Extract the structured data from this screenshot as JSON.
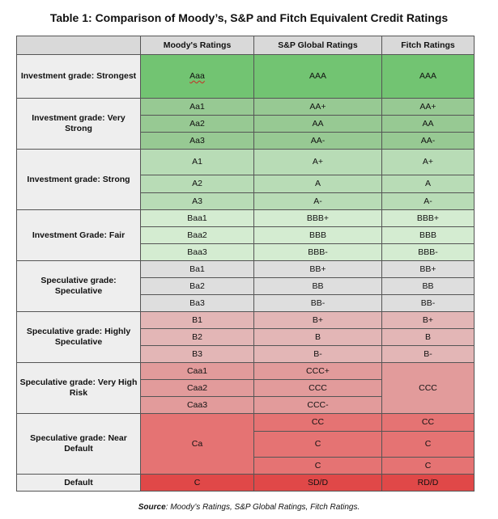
{
  "title": "Table 1: Comparison of Moody’s, S&P and Fitch Equivalent Credit Ratings",
  "headers": [
    "",
    "Moody's Ratings",
    "S&P Global Ratings",
    "Fitch Ratings"
  ],
  "categories": {
    "strongest": "Investment grade: Strongest",
    "very_strong": "Investment grade: Very Strong",
    "strong": "Investment grade: Strong",
    "fair": "Investment Grade: Fair",
    "speculative": "Speculative grade: Speculative",
    "highly_speculative": "Speculative grade: Highly Speculative",
    "very_high_risk": "Speculative grade: Very High Risk",
    "near_default": "Speculative grade: Near Default",
    "default": "Default"
  },
  "moodys": [
    "Aaa",
    "Aa1",
    "Aa2",
    "Aa3",
    "A1",
    "A2",
    "A3",
    "Baa1",
    "Baa2",
    "Baa3",
    "Ba1",
    "Ba2",
    "Ba3",
    "B1",
    "B2",
    "B3",
    "Caa1",
    "Caa2",
    "Caa3",
    "Ca",
    "C"
  ],
  "sp": [
    "AAA",
    "AA+",
    "AA",
    "AA-",
    "A+",
    "A",
    "A-",
    "BBB+",
    "BBB",
    "BBB-",
    "BB+",
    "BB",
    "BB-",
    "B+",
    "B",
    "B-",
    "CCC+",
    "CCC",
    "CCC-",
    "CC",
    "C",
    "C",
    "SD/D"
  ],
  "fitch": [
    "AAA",
    "AA+",
    "AA",
    "AA-",
    "A+",
    "A",
    "A-",
    "BBB+",
    "BBB",
    "BBB-",
    "BB+",
    "BB",
    "BB-",
    "B+",
    "B",
    "B-",
    "CCC",
    "CC",
    "C",
    "C",
    "RD/D"
  ],
  "colors": {
    "strongest": "#72c472",
    "very_strong": "#97c993",
    "strong": "#b8dcb6",
    "fair": "#d4ecd1",
    "speculative": "#dedede",
    "highly_speculative": "#e3b6b6",
    "very_high_risk": "#e29b9b",
    "near_default": "#e57373",
    "default": "#e04848"
  },
  "source": {
    "label": "Source",
    "text": ": Moody’s Ratings, S&P Global Ratings, Fitch Ratings."
  }
}
